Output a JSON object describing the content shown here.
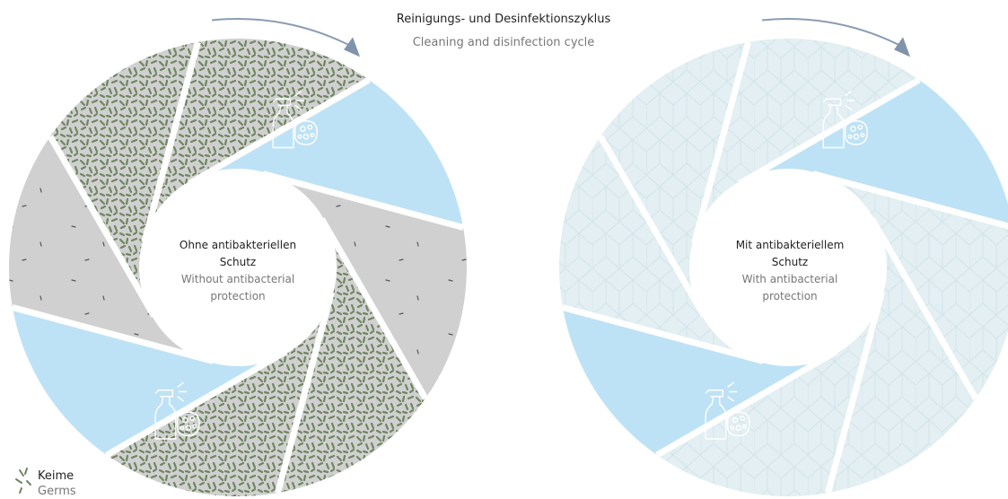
{
  "header": {
    "title": "Reinigungs- und Desinfektionszyklus",
    "subtitle": "Cleaning and disinfection cycle"
  },
  "wheels": [
    {
      "label": "Ohne antibakteriellen Schutz",
      "sublabel": "Without antibacterial protection"
    },
    {
      "label": "Mit antibakteriellem Schutz",
      "sublabel": "With antibacterial protection"
    }
  ],
  "legend": {
    "label": "Keime",
    "sublabel": "Germs"
  }
}
